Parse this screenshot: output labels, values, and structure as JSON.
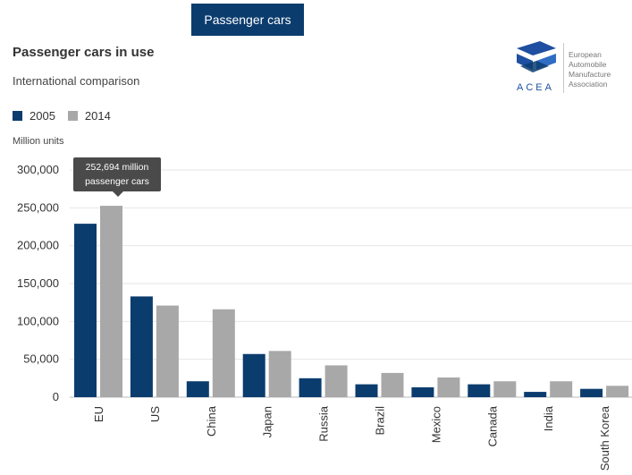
{
  "tab": {
    "label": "Passenger cars"
  },
  "header": {
    "title": "Passenger cars in use",
    "subtitle": "International comparison"
  },
  "logo": {
    "abbr": "ACEA",
    "line1": "European",
    "line2": "Automobile",
    "line3": "Manufacture",
    "line4": "Association"
  },
  "tooltip": {
    "line1": "252,694 million",
    "line2": "passenger cars"
  },
  "colors": {
    "series_2005": "#0b3c6e",
    "series_2014": "#a8a8a8",
    "grid": "#e6e6e6",
    "axis": "#bbbbbb"
  },
  "chart_data": {
    "type": "bar",
    "title": "Passenger cars in use",
    "subtitle": "International comparison",
    "ylabel": "Million units",
    "xlabel": "",
    "ylim": [
      0,
      300000
    ],
    "yticks": [
      0,
      50000,
      100000,
      150000,
      200000,
      250000,
      300000
    ],
    "ytick_labels": [
      "0",
      "50,000",
      "100,000",
      "150,000",
      "200,000",
      "250,000",
      "300,000"
    ],
    "grid": true,
    "legend_position": "top-left",
    "categories": [
      "EU",
      "US",
      "China",
      "Japan",
      "Russia",
      "Brazil",
      "Mexico",
      "Canada",
      "India",
      "South Korea"
    ],
    "series": [
      {
        "name": "2005",
        "values": [
          229000,
          133000,
          21000,
          57000,
          25000,
          17000,
          13000,
          17000,
          7000,
          11000
        ]
      },
      {
        "name": "2014",
        "values": [
          252694,
          121000,
          116000,
          61000,
          42000,
          32000,
          26000,
          21000,
          21000,
          15000
        ]
      }
    ]
  }
}
